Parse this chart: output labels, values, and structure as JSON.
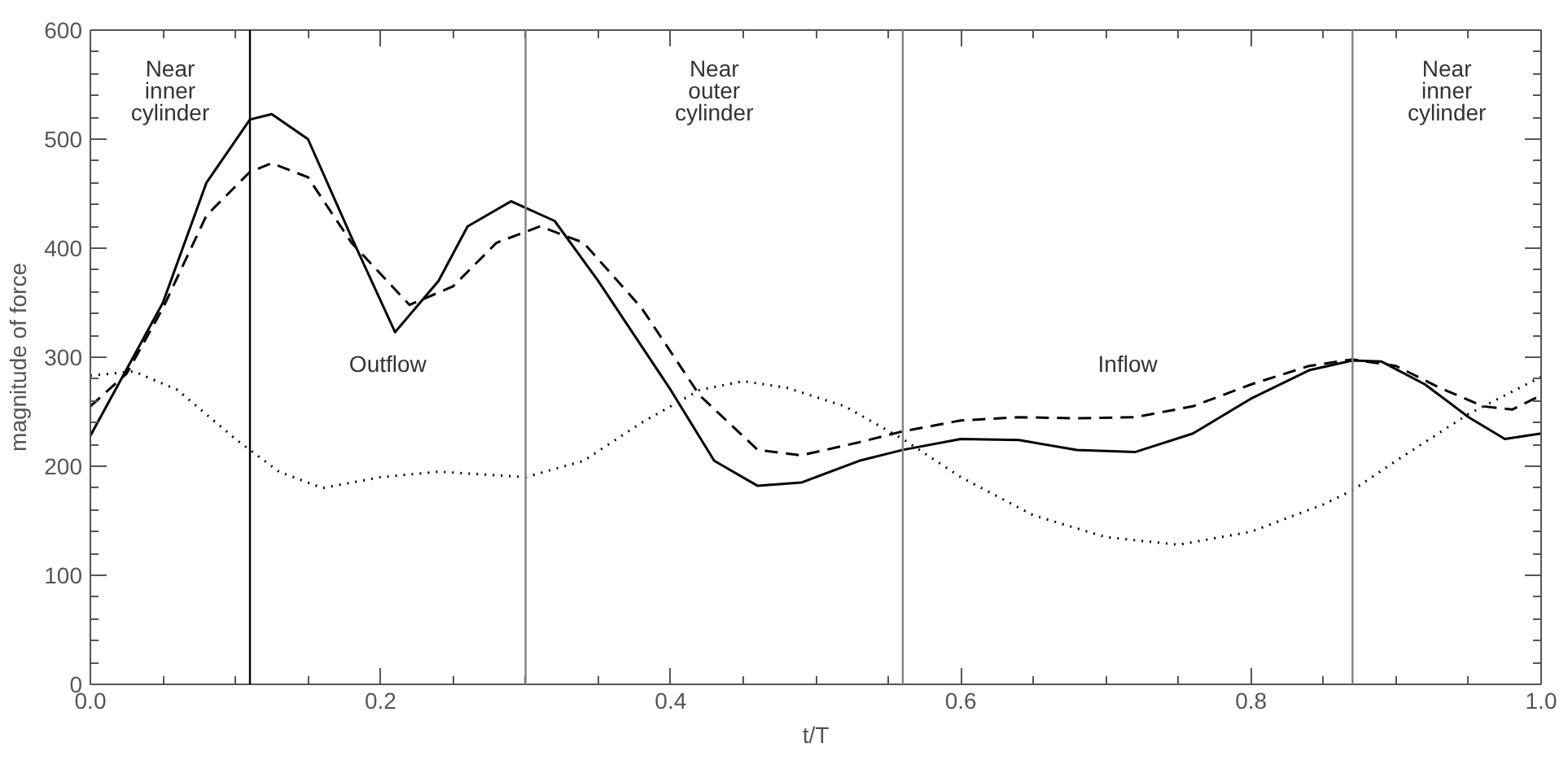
{
  "chart_data": {
    "type": "line",
    "xlabel": "t/T",
    "ylabel": "magnitude of force",
    "xlim": [
      0,
      1
    ],
    "ylim": [
      0,
      600
    ],
    "xticks": [
      {
        "value": 0,
        "label": "0.0"
      },
      {
        "value": 0.2,
        "label": "0.2"
      },
      {
        "value": 0.4,
        "label": "0.4"
      },
      {
        "value": 0.6,
        "label": "0.6"
      },
      {
        "value": 0.8,
        "label": "0.8"
      },
      {
        "value": 1,
        "label": "1.0"
      }
    ],
    "yticks": [
      0,
      100,
      200,
      300,
      400,
      500,
      600
    ],
    "grid": false,
    "marker": "none",
    "series": [
      {
        "color": "#000000",
        "line_style": "solid",
        "x": [
          0,
          0.05,
          0.08,
          0.11,
          0.125,
          0.15,
          0.18,
          0.21,
          0.24,
          0.26,
          0.29,
          0.32,
          0.35,
          0.4,
          0.43,
          0.46,
          0.49,
          0.53,
          0.56,
          0.6,
          0.64,
          0.68,
          0.72,
          0.76,
          0.8,
          0.84,
          0.87,
          0.89,
          0.92,
          0.95,
          0.975,
          1.0
        ],
        "values": [
          228,
          350,
          460,
          518,
          523,
          500,
          410,
          323,
          370,
          420,
          443,
          425,
          370,
          270,
          205,
          182,
          185,
          205,
          215,
          225,
          224,
          215,
          213,
          230,
          262,
          288,
          297,
          296,
          275,
          245,
          225,
          230
        ]
      },
      {
        "color": "#000000",
        "line_style": "dashed",
        "x": [
          0,
          0.025,
          0.05,
          0.08,
          0.11,
          0.125,
          0.15,
          0.18,
          0.22,
          0.25,
          0.28,
          0.31,
          0.34,
          0.38,
          0.42,
          0.46,
          0.49,
          0.53,
          0.56,
          0.6,
          0.64,
          0.68,
          0.72,
          0.76,
          0.8,
          0.84,
          0.87,
          0.9,
          0.93,
          0.96,
          0.98,
          1.0
        ],
        "values": [
          255,
          285,
          345,
          430,
          470,
          478,
          465,
          405,
          348,
          365,
          405,
          420,
          405,
          345,
          265,
          215,
          210,
          222,
          232,
          242,
          245,
          244,
          245,
          255,
          275,
          292,
          298,
          292,
          272,
          255,
          252,
          265
        ]
      },
      {
        "color": "#000000",
        "line_style": "dotted",
        "x": [
          0,
          0.03,
          0.06,
          0.1,
          0.13,
          0.16,
          0.2,
          0.24,
          0.3,
          0.34,
          0.38,
          0.42,
          0.45,
          0.48,
          0.52,
          0.56,
          0.6,
          0.65,
          0.7,
          0.75,
          0.8,
          0.85,
          0.87,
          0.9,
          0.95,
          1.0
        ],
        "values": [
          283,
          287,
          270,
          225,
          195,
          180,
          190,
          195,
          190,
          205,
          240,
          270,
          278,
          272,
          255,
          225,
          190,
          155,
          135,
          128,
          140,
          165,
          178,
          205,
          248,
          282
        ]
      }
    ],
    "ref_lines": [
      {
        "axis": "x",
        "value": 0.11,
        "color": "#000000"
      },
      {
        "axis": "x",
        "value": 0.3,
        "color": "#808080"
      },
      {
        "axis": "x",
        "value": 0.56,
        "color": "#808080"
      },
      {
        "axis": "x",
        "value": 0.87,
        "color": "#808080"
      }
    ],
    "annotations": [
      "Near\ninner\ncylinder",
      "Outflow",
      "Near\nouter\ncylinder",
      "Inflow",
      "Near\ninner\ncylinder"
    ]
  }
}
